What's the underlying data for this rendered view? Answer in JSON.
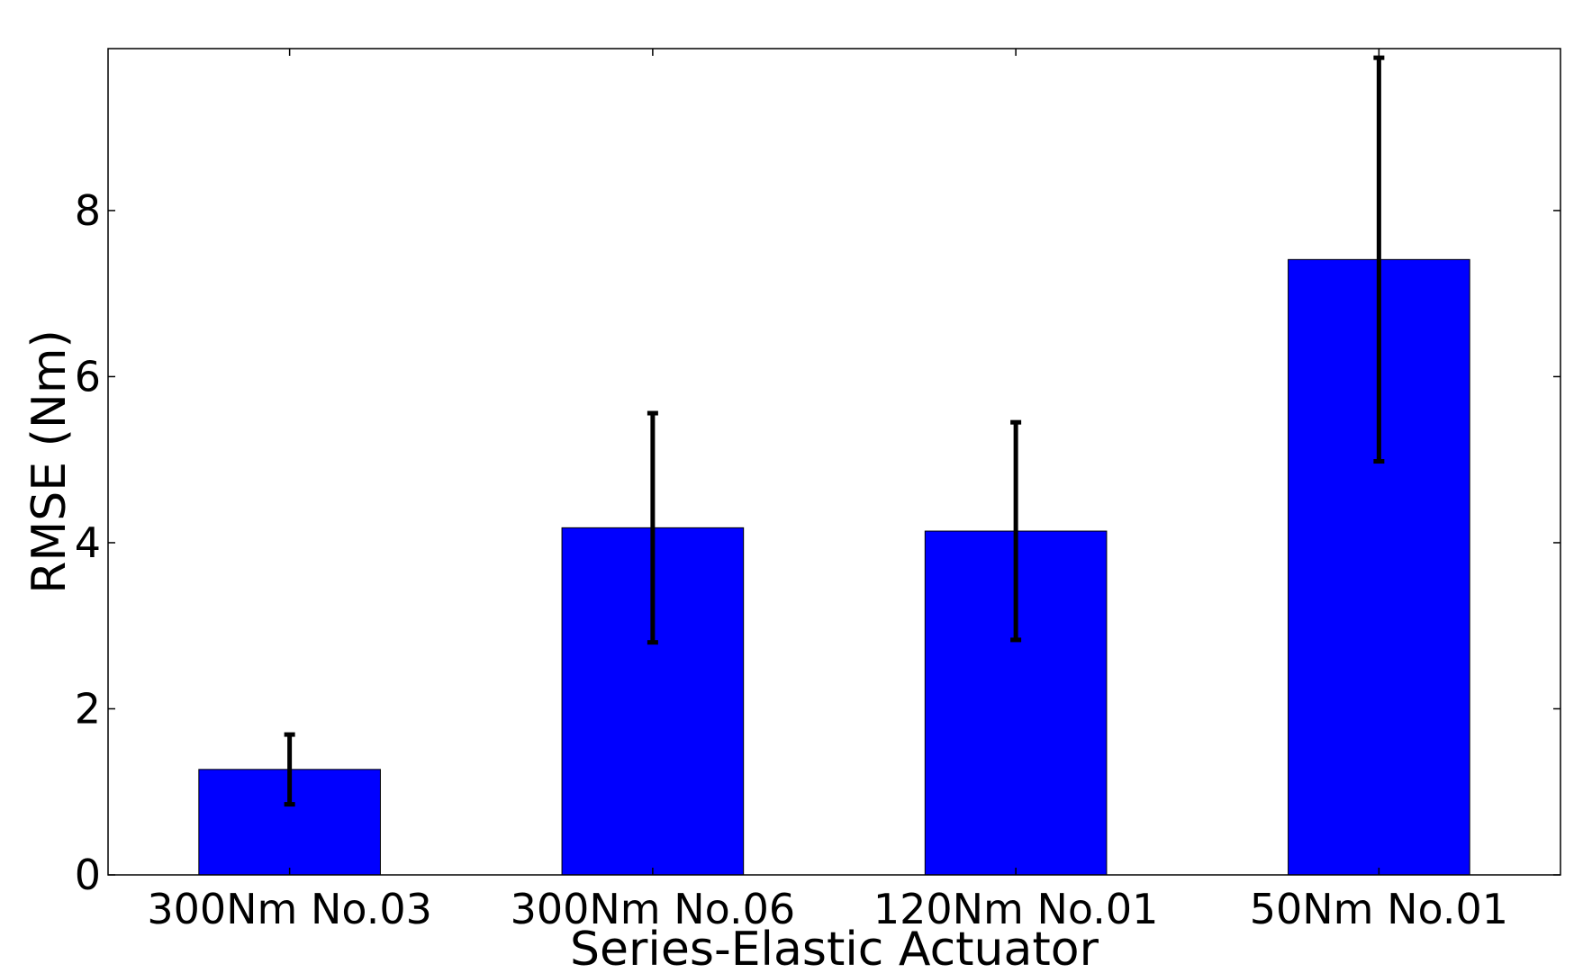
{
  "chart_data": {
    "type": "bar",
    "title": "",
    "xlabel": "Series-Elastic Actuator",
    "ylabel": "RMSE (Nm)",
    "categories": [
      "300Nm No.03",
      "300Nm No.06",
      "120Nm No.01",
      "50Nm No.01"
    ],
    "values": [
      1.27,
      4.18,
      4.14,
      7.41
    ],
    "errors": [
      0.42,
      1.38,
      1.31,
      2.43
    ],
    "ylim": [
      0,
      9.95
    ],
    "yticks": [
      0,
      2,
      4,
      6,
      8
    ],
    "grid": false,
    "legend": "none",
    "colors": {
      "bar": "#0000ff",
      "error_bar": "#000000",
      "axis": "#000000"
    }
  }
}
